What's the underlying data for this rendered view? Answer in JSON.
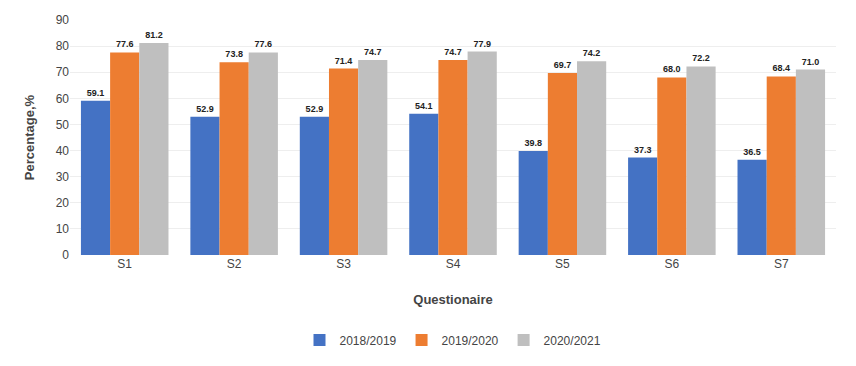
{
  "chart_data": {
    "type": "bar",
    "xlabel": "Questionaire",
    "ylabel": "Percentage,%",
    "categories": [
      "S1",
      "S2",
      "S3",
      "S4",
      "S5",
      "S6",
      "S7"
    ],
    "series": [
      {
        "name": "2018/2019",
        "color": "#4472C4",
        "values": [
          59.1,
          52.9,
          52.9,
          54.1,
          39.8,
          37.3,
          36.5
        ]
      },
      {
        "name": "2019/2020",
        "color": "#ED7D31",
        "values": [
          77.6,
          73.8,
          71.4,
          74.7,
          69.7,
          68.0,
          68.4
        ],
        "value_labels": [
          "77.6",
          "73.8",
          "71.4",
          "74.7",
          "69.7",
          "68.0",
          "68.4"
        ]
      },
      {
        "name": "2020/2021",
        "color": "#BFBFBF",
        "values": [
          81.2,
          77.6,
          74.7,
          77.9,
          74.2,
          72.2,
          71.0
        ],
        "value_labels": [
          "81.2",
          "77.6",
          "74.7",
          "77.9",
          "74.2",
          "72.2",
          "71.0"
        ]
      }
    ],
    "ylim": [
      0,
      90
    ],
    "yticks": [
      0,
      10,
      20,
      30,
      40,
      50,
      60,
      70,
      80,
      90
    ],
    "grid": true,
    "legend": "bottom",
    "data_labels": true
  }
}
